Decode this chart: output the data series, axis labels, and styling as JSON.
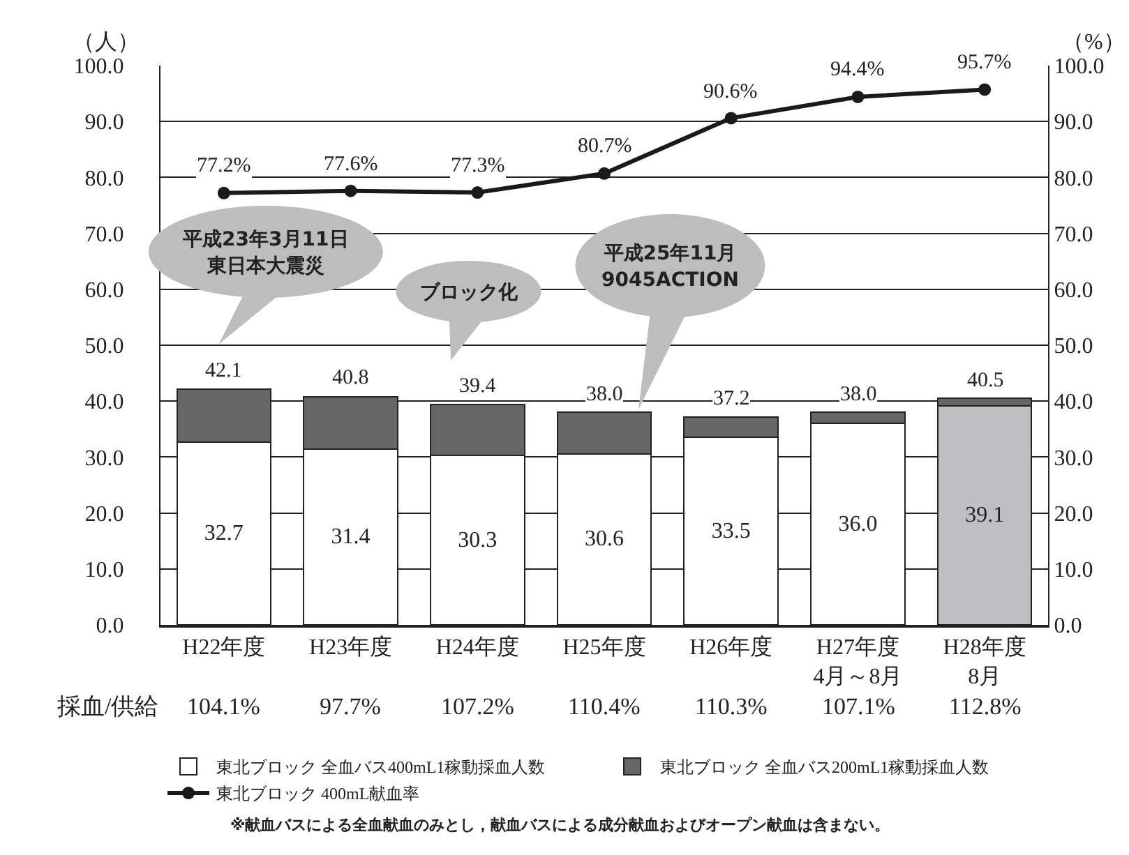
{
  "chart_data": {
    "type": "bar",
    "stacked": true,
    "ylabel": "（人）",
    "y2label": "（%）",
    "categories": [
      "H22年度",
      "H23年度",
      "H24年度",
      "H25年度",
      "H26年度",
      "H27年度\n4月～8月",
      "H28年度\n8月"
    ],
    "series": [
      {
        "name": "東北ブロック 全血バス400mL1稼動採血人数",
        "colors": [
          "#ffffff",
          "#ffffff",
          "#ffffff",
          "#ffffff",
          "#ffffff",
          "#ffffff",
          "#bfbfc2"
        ],
        "values": [
          32.7,
          31.4,
          30.3,
          30.6,
          33.5,
          36.0,
          39.1
        ],
        "value_labels": [
          "32.7",
          "31.4",
          "30.3",
          "30.6",
          "33.5",
          "36.0",
          "39.1"
        ]
      },
      {
        "name": "東北ブロック 全血バス200mL1稼動採血人数",
        "color": "#666666",
        "values": [
          9.4,
          9.4,
          9.1,
          7.4,
          3.7,
          2.0,
          1.4
        ]
      },
      {
        "name": "東北ブロック 400mL献血率",
        "type": "line",
        "axis": "y2",
        "color": "#1a1a1a",
        "values": [
          77.2,
          77.6,
          77.3,
          80.7,
          90.6,
          94.4,
          95.7
        ],
        "value_labels": [
          "77.2%",
          "77.6%",
          "77.3%",
          "80.7%",
          "90.6%",
          "94.4%",
          "95.7%"
        ]
      }
    ],
    "totals": [
      "42.1",
      "40.8",
      "39.4",
      "38.0",
      "37.2",
      "38.0",
      "40.5"
    ],
    "ylim": [
      0,
      100
    ],
    "yticks": [
      {
        "value": 0,
        "label": "0.0"
      },
      {
        "value": 10,
        "label": "10.0"
      },
      {
        "value": 20,
        "label": "20.0"
      },
      {
        "value": 30,
        "label": "30.0"
      },
      {
        "value": 40,
        "label": "40.0"
      },
      {
        "value": 50,
        "label": "50.0"
      },
      {
        "value": 60,
        "label": "60.0"
      },
      {
        "value": 70,
        "label": "70.0"
      },
      {
        "value": 80,
        "label": "80.0"
      },
      {
        "value": 90,
        "label": "90.0"
      },
      {
        "value": 100,
        "label": "100.0"
      }
    ],
    "y2lim": [
      0,
      100
    ],
    "y2ticks": [
      {
        "value": 0,
        "label": "0.0"
      },
      {
        "value": 10,
        "label": "10.0"
      },
      {
        "value": 20,
        "label": "20.0"
      },
      {
        "value": 30,
        "label": "30.0"
      },
      {
        "value": 40,
        "label": "40.0"
      },
      {
        "value": 50,
        "label": "50.0"
      },
      {
        "value": 60,
        "label": "60.0"
      },
      {
        "value": 70,
        "label": "70.0"
      },
      {
        "value": 80,
        "label": "80.0"
      },
      {
        "value": 90,
        "label": "90.0"
      },
      {
        "value": 100,
        "label": "100.0"
      }
    ],
    "grid": "y",
    "legend": "bottom",
    "marker": "circle",
    "line_style": "solid",
    "annotations": [
      "平成23年3月11日",
      "東日本大震災",
      "ブロック化",
      "平成25年11月",
      "9045ACTION",
      "採血/供給",
      "104.1%",
      "97.7%",
      "107.2%",
      "110.4%",
      "110.3%",
      "107.1%",
      "112.8%",
      "※献血バスによる全血献血のみとし，献血バスによる成分献血およびオープン献血は含まない。"
    ]
  }
}
